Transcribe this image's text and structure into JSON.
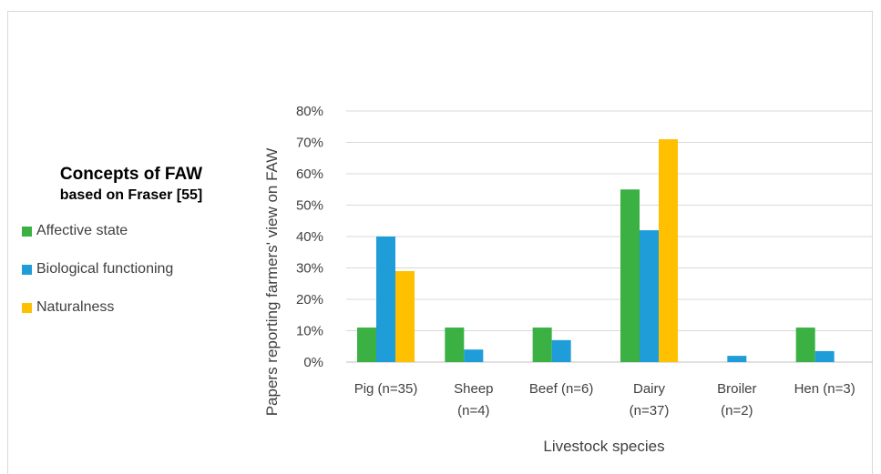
{
  "legend": {
    "title_line1": "Concepts of FAW",
    "title_line2": "based on Fraser [55]",
    "items": [
      {
        "label": "Affective state",
        "color": "#3BB143"
      },
      {
        "label": "Biological functioning",
        "color": "#1E9DD8"
      },
      {
        "label": "Naturalness",
        "color": "#FFC000"
      }
    ]
  },
  "chart_data": {
    "type": "bar",
    "title": "",
    "xlabel": "Livestock species",
    "ylabel": "Papers reporting farmers' view on FAW",
    "ylim": [
      0,
      80
    ],
    "yticks": [
      "0%",
      "10%",
      "20%",
      "30%",
      "40%",
      "50%",
      "60%",
      "70%",
      "80%"
    ],
    "categories": [
      [
        "Pig (n=35)"
      ],
      [
        "Sheep",
        "(n=4)"
      ],
      [
        "Beef (n=6)"
      ],
      [
        "Dairy",
        "(n=37)"
      ],
      [
        "Broiler",
        "(n=2)"
      ],
      [
        "Hen (n=3)"
      ]
    ],
    "series": [
      {
        "name": "Affective state",
        "color": "#3BB143",
        "values": [
          11,
          11,
          11,
          55,
          0,
          11
        ]
      },
      {
        "name": "Biological functioning",
        "color": "#1E9DD8",
        "values": [
          40,
          4,
          7,
          42,
          2,
          3.5
        ]
      },
      {
        "name": "Naturalness",
        "color": "#FFC000",
        "values": [
          29,
          0,
          0,
          71,
          0,
          0
        ]
      }
    ],
    "grid": true,
    "legend_position": "left"
  }
}
